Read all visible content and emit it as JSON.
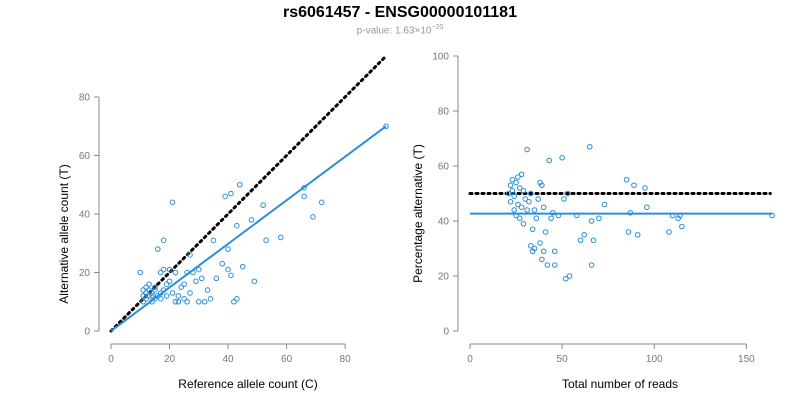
{
  "header": {
    "title": "rs6061457 - ENSG00000101181",
    "pvalue_prefix": "p-value: 1.63×10",
    "pvalue_exponent": "−20"
  },
  "colors": {
    "points": "#2a8fd8",
    "fit_line": "#2a8fd8",
    "reference_line": "#000000",
    "axis": "#888888"
  },
  "chart_data": [
    {
      "type": "scatter",
      "xlabel": "Reference allele count (C)",
      "ylabel": "Alternative allele count (T)",
      "xlim": [
        0,
        95
      ],
      "ylim": [
        0,
        80
      ],
      "xticks": [
        0,
        20,
        40,
        60,
        80
      ],
      "yticks": [
        0,
        20,
        40,
        60,
        80
      ],
      "grid": false,
      "legend": "none",
      "reference_line": {
        "style": "dotted",
        "intercept": 0,
        "slope": 1,
        "x_range": [
          0,
          94
        ]
      },
      "fit_line": {
        "style": "solid",
        "intercept": 0,
        "slope": 0.7447,
        "x_range": [
          0,
          94
        ]
      },
      "points": [
        [
          10,
          20
        ],
        [
          11,
          10
        ],
        [
          11,
          12
        ],
        [
          11,
          14
        ],
        [
          12,
          13
        ],
        [
          12,
          11
        ],
        [
          12,
          15
        ],
        [
          13,
          12
        ],
        [
          13,
          14
        ],
        [
          13,
          16
        ],
        [
          14,
          10
        ],
        [
          14,
          12
        ],
        [
          14,
          13
        ],
        [
          15,
          11
        ],
        [
          15,
          14
        ],
        [
          15,
          15
        ],
        [
          16,
          12
        ],
        [
          16,
          28
        ],
        [
          17,
          11
        ],
        [
          17,
          13
        ],
        [
          17,
          20
        ],
        [
          18,
          21
        ],
        [
          18,
          31
        ],
        [
          18,
          14
        ],
        [
          19,
          16
        ],
        [
          19,
          12
        ],
        [
          20,
          21
        ],
        [
          20,
          17
        ],
        [
          21,
          44
        ],
        [
          21,
          13
        ],
        [
          22,
          10
        ],
        [
          22,
          20
        ],
        [
          23,
          12
        ],
        [
          23,
          10
        ],
        [
          24,
          15
        ],
        [
          25,
          16
        ],
        [
          25,
          11
        ],
        [
          26,
          10
        ],
        [
          26,
          20
        ],
        [
          27,
          26
        ],
        [
          27,
          13
        ],
        [
          28,
          20
        ],
        [
          29,
          17
        ],
        [
          30,
          21
        ],
        [
          30,
          10
        ],
        [
          31,
          18
        ],
        [
          32,
          10
        ],
        [
          33,
          14
        ],
        [
          34,
          11
        ],
        [
          35,
          31
        ],
        [
          36,
          18
        ],
        [
          38,
          23
        ],
        [
          39,
          46
        ],
        [
          40,
          21
        ],
        [
          40,
          28
        ],
        [
          41,
          47
        ],
        [
          41,
          19
        ],
        [
          42,
          10
        ],
        [
          43,
          11
        ],
        [
          43,
          36
        ],
        [
          44,
          50
        ],
        [
          45,
          22
        ],
        [
          48,
          38
        ],
        [
          49,
          17
        ],
        [
          52,
          43
        ],
        [
          53,
          31
        ],
        [
          58,
          32
        ],
        [
          66,
          49
        ],
        [
          66,
          46
        ],
        [
          69,
          39
        ],
        [
          72,
          44
        ],
        [
          94,
          70
        ]
      ]
    },
    {
      "type": "scatter",
      "xlabel": "Total number of reads",
      "ylabel": "Percentage alternative (T)",
      "xlim": [
        0,
        165
      ],
      "ylim": [
        0,
        100
      ],
      "xticks": [
        0,
        50,
        100,
        150
      ],
      "yticks": [
        0,
        20,
        40,
        60,
        80,
        100
      ],
      "grid": false,
      "legend": "none",
      "reference_line": {
        "style": "dotted",
        "value": 50,
        "x_range": [
          0,
          163
        ]
      },
      "fit_line": {
        "style": "solid",
        "value": 42.7,
        "x_range": [
          0,
          164
        ]
      },
      "points": [
        [
          21,
          50
        ],
        [
          22,
          53
        ],
        [
          22,
          47
        ],
        [
          23,
          55
        ],
        [
          23,
          51
        ],
        [
          24,
          44
        ],
        [
          24,
          49
        ],
        [
          25,
          54
        ],
        [
          25,
          42
        ],
        [
          26,
          56
        ],
        [
          26,
          46
        ],
        [
          27,
          52
        ],
        [
          27,
          41
        ],
        [
          28,
          57
        ],
        [
          28,
          45
        ],
        [
          29,
          51
        ],
        [
          29,
          39
        ],
        [
          30,
          48
        ],
        [
          31,
          66
        ],
        [
          31,
          44
        ],
        [
          32,
          47
        ],
        [
          33,
          31
        ],
        [
          33,
          50
        ],
        [
          34,
          37
        ],
        [
          34,
          29
        ],
        [
          35,
          44
        ],
        [
          35,
          30
        ],
        [
          36,
          41
        ],
        [
          37,
          48
        ],
        [
          38,
          54
        ],
        [
          38,
          32
        ],
        [
          39,
          53
        ],
        [
          39,
          26
        ],
        [
          40,
          45
        ],
        [
          40,
          29
        ],
        [
          41,
          36
        ],
        [
          42,
          24
        ],
        [
          43,
          62
        ],
        [
          44,
          41
        ],
        [
          45,
          43
        ],
        [
          46,
          29
        ],
        [
          46,
          24
        ],
        [
          48,
          42
        ],
        [
          50,
          63
        ],
        [
          51,
          48
        ],
        [
          52,
          19
        ],
        [
          53,
          50
        ],
        [
          54,
          20
        ],
        [
          58,
          42
        ],
        [
          60,
          33
        ],
        [
          62,
          35
        ],
        [
          65,
          67
        ],
        [
          66,
          40
        ],
        [
          66,
          24
        ],
        [
          67,
          33
        ],
        [
          70,
          41
        ],
        [
          73,
          46
        ],
        [
          85,
          55
        ],
        [
          86,
          36
        ],
        [
          87,
          43
        ],
        [
          89,
          53
        ],
        [
          91,
          35
        ],
        [
          95,
          52
        ],
        [
          96,
          45
        ],
        [
          108,
          36
        ],
        [
          110,
          42
        ],
        [
          113,
          41
        ],
        [
          114,
          42
        ],
        [
          115,
          38
        ],
        [
          164,
          42
        ]
      ]
    }
  ]
}
